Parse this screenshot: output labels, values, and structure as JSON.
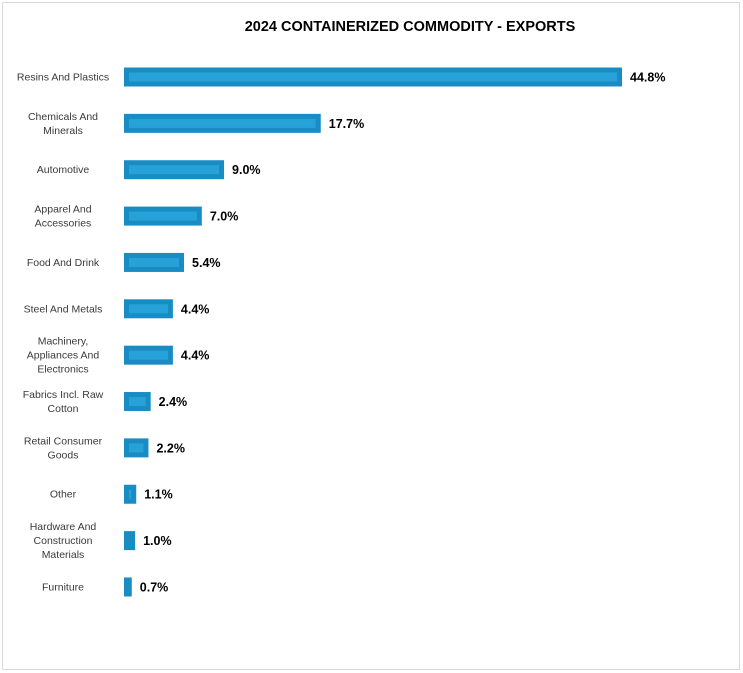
{
  "chart_data": {
    "type": "bar",
    "orientation": "horizontal",
    "title": "2024 CONTAINERIZED COMMODITY - EXPORTS",
    "categories": [
      "Resins And Plastics",
      "Chemicals And Minerals",
      "Automotive",
      "Apparel And Accessories",
      "Food And Drink",
      "Steel And Metals",
      "Machinery, Appliances And Electronics",
      "Fabrics Incl. Raw Cotton",
      "Retail Consumer Goods",
      "Other",
      "Hardware And Construction Materials",
      "Furniture"
    ],
    "category_lines": [
      [
        "Resins And Plastics"
      ],
      [
        "Chemicals And",
        "Minerals"
      ],
      [
        "Automotive"
      ],
      [
        "Apparel And",
        "Accessories"
      ],
      [
        "Food And Drink"
      ],
      [
        "Steel And Metals"
      ],
      [
        "Machinery,",
        "Appliances And",
        "Electronics"
      ],
      [
        "Fabrics Incl. Raw",
        "Cotton"
      ],
      [
        "Retail Consumer",
        "Goods"
      ],
      [
        "Other"
      ],
      [
        "Hardware And",
        "Construction",
        "Materials"
      ],
      [
        "Furniture"
      ]
    ],
    "values": [
      44.8,
      17.7,
      9.0,
      7.0,
      5.4,
      4.4,
      4.4,
      2.4,
      2.2,
      1.1,
      1.0,
      0.7
    ],
    "value_labels": [
      "44.8%",
      "17.7%",
      "9.0%",
      "7.0%",
      "5.4%",
      "4.4%",
      "4.4%",
      "2.4%",
      "2.2%",
      "1.1%",
      "1.0%",
      "0.7%"
    ],
    "unit": "%",
    "xlim": [
      0,
      44.8
    ],
    "grid": false,
    "legend": "none",
    "colors": {
      "bar": "#1a8cc4",
      "bar_highlight": "#27a2d9"
    }
  }
}
